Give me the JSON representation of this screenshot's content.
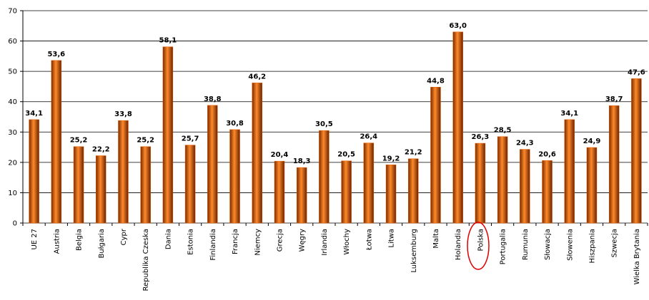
{
  "chart_data": {
    "type": "bar",
    "categories": [
      "UE 27",
      "Austria",
      "Belgia",
      "Bułgaria",
      "Cypr",
      "Republika Czeska",
      "Dania",
      "Estonia",
      "Finlandia",
      "Francja",
      "Niemcy",
      "Grecja",
      "Węgry",
      "Irlandia",
      "Włochy",
      "Łotwa",
      "Litwa",
      "Luksemburg",
      "Malta",
      "Holandia",
      "Polska",
      "Portugalia",
      "Rumunia",
      "Słowacja",
      "Słowenia",
      "Hiszpania",
      "Szwecja",
      "Wielka Brytania"
    ],
    "values": [
      34.1,
      53.6,
      25.2,
      22.2,
      33.8,
      25.2,
      58.1,
      25.7,
      38.8,
      30.8,
      46.2,
      20.4,
      18.3,
      30.5,
      20.5,
      26.4,
      19.2,
      21.2,
      44.8,
      63.0,
      26.3,
      28.5,
      24.3,
      20.6,
      34.1,
      24.9,
      38.7,
      47.6
    ],
    "value_labels": [
      "34,1",
      "53,6",
      "25,2",
      "22,2",
      "33,8",
      "25,2",
      "58,1",
      "25,7",
      "38,8",
      "30,8",
      "46,2",
      "20,4",
      "18,3",
      "30,5",
      "20,5",
      "26,4",
      "19,2",
      "21,2",
      "44,8",
      "63,0",
      "26,3",
      "28,5",
      "24,3",
      "20,6",
      "34,1",
      "24,9",
      "38,7",
      "47,6"
    ],
    "color": "#e65c00",
    "ylim": [
      0,
      70
    ],
    "yticks": [
      0,
      10,
      20,
      30,
      40,
      50,
      60,
      70
    ],
    "grid": true
  }
}
